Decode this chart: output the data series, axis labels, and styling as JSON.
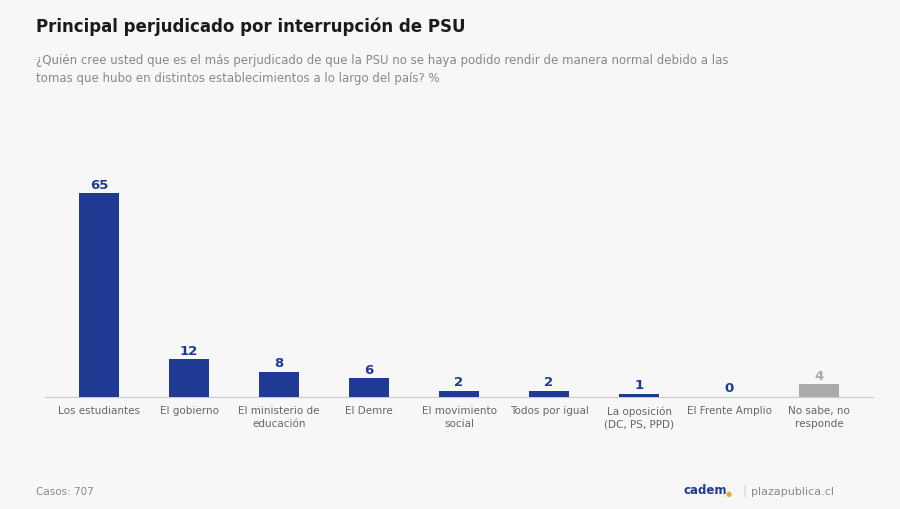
{
  "title": "Principal perjudicado por interrupción de PSU",
  "subtitle": "¿Quién cree usted que es el más perjudicado de que la PSU no se haya podido rendir de manera normal debido a las\ntomas que hubo en distintos establecimientos a lo largo del país? %",
  "categories": [
    "Los estudiantes",
    "El gobierno",
    "El ministerio de\neducación",
    "El Demre",
    "El movimiento\nsocial",
    "Todos por igual",
    "La oposición\n(DC, PS, PPD)",
    "El Frente Amplio",
    "No sabe, no\nresponde"
  ],
  "values": [
    65,
    12,
    8,
    6,
    2,
    2,
    1,
    0,
    4
  ],
  "bar_colors": [
    "#1f3a93",
    "#1f3a93",
    "#1f3a93",
    "#1f3a93",
    "#1f3a93",
    "#1f3a93",
    "#1f3a93",
    "#1f3a93",
    "#aaaaaa"
  ],
  "value_colors": [
    "#1f3a93",
    "#1f3a93",
    "#1f3a93",
    "#1f3a93",
    "#1f3a93",
    "#1f3a93",
    "#1f3a93",
    "#1f3a93",
    "#aaaaaa"
  ],
  "ylim": [
    0,
    75
  ],
  "casos_text": "Casos: 707",
  "footer_right": "plazapublica.cl",
  "background_color": "#f7f7f7",
  "title_fontsize": 12,
  "subtitle_fontsize": 8.5,
  "bar_label_fontsize": 9.5,
  "tick_label_fontsize": 7.5
}
